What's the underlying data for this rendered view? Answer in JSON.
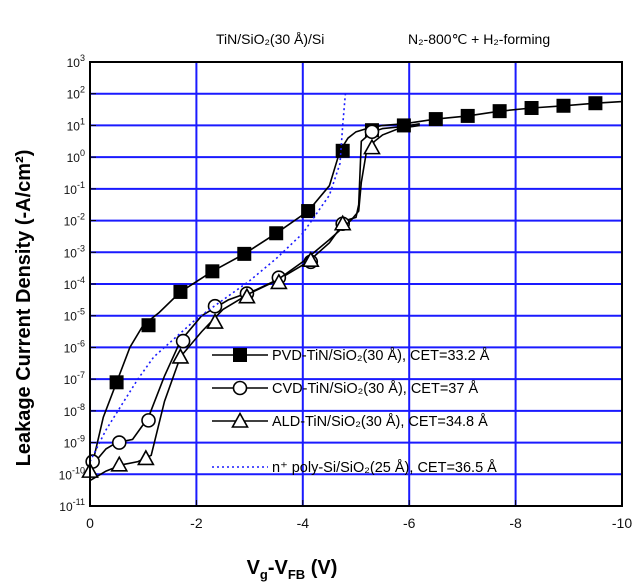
{
  "chart_data": {
    "type": "line",
    "title_left": "TiN/SiO₂(30 Å)/Si",
    "title_right": "N₂-800℃ + H₂-forming",
    "xlabel": "Vg-VFB (V)",
    "ylabel": "Leakage Current Density (-A/cm²)",
    "xlim": [
      0,
      -10
    ],
    "ylim_exp": [
      -11,
      3
    ],
    "yscale": "log",
    "grid": true,
    "x_ticks": [
      "0",
      "-2",
      "-4",
      "-6",
      "-8",
      "-10"
    ],
    "y_ticks": [
      "10^3",
      "10^2",
      "10^1",
      "10^0",
      "10^-1",
      "10^-2",
      "10^-3",
      "10^-4",
      "10^-5",
      "10^-6",
      "10^-7",
      "10^-8",
      "10^-9",
      "10^-10",
      "10^-11"
    ],
    "series": [
      {
        "name": "PVD-TiN/SiO₂(30 Å), CET=33.2 Å",
        "marker": "filled-square",
        "line": "solid",
        "x": [
          0,
          -0.25,
          -0.5,
          -0.75,
          -1.0,
          -1.3,
          -1.7,
          -2.3,
          -2.9,
          -3.5,
          -4.1,
          -4.5,
          -4.7,
          -4.85,
          -5.0,
          -5.2,
          -5.5,
          -5.9,
          -6.5,
          -7.1,
          -7.7,
          -8.3,
          -8.9,
          -9.5,
          -10.0
        ],
        "y": [
          -10.0,
          -8.2,
          -7.1,
          -6.0,
          -5.3,
          -4.9,
          -4.25,
          -3.6,
          -3.05,
          -2.4,
          -1.7,
          -0.9,
          0.2,
          0.6,
          0.8,
          0.9,
          1.0,
          1.05,
          1.2,
          1.3,
          1.45,
          1.55,
          1.62,
          1.7,
          1.75
        ],
        "markers": [
          [
            -0.5,
            -7.1
          ],
          [
            -1.1,
            -5.3
          ],
          [
            -1.7,
            -4.25
          ],
          [
            -2.3,
            -3.6
          ],
          [
            -2.9,
            -3.05
          ],
          [
            -3.5,
            -2.4
          ],
          [
            -4.1,
            -1.7
          ],
          [
            -4.75,
            0.2
          ],
          [
            -5.3,
            0.85
          ],
          [
            -5.9,
            1.0
          ],
          [
            -6.5,
            1.2
          ],
          [
            -7.1,
            1.3
          ],
          [
            -7.7,
            1.45
          ],
          [
            -8.3,
            1.55
          ],
          [
            -8.9,
            1.62
          ],
          [
            -9.5,
            1.7
          ]
        ]
      },
      {
        "name": "CVD-TiN/SiO₂(30 Å), CET=37 Å",
        "marker": "open-circle",
        "line": "solid",
        "x": [
          0,
          -0.3,
          -0.5,
          -0.8,
          -1.1,
          -1.4,
          -1.7,
          -2.1,
          -2.6,
          -3.1,
          -3.6,
          -4.1,
          -4.5,
          -4.8,
          -5.0,
          -5.05,
          -5.1,
          -5.3,
          -5.5,
          -5.8,
          -6.2
        ],
        "y": [
          -9.8,
          -9.2,
          -9.0,
          -8.9,
          -8.2,
          -6.9,
          -5.8,
          -5.0,
          -4.5,
          -4.2,
          -3.8,
          -3.3,
          -2.7,
          -2.0,
          -1.9,
          -1.5,
          0.5,
          0.8,
          0.9,
          0.95,
          1.05
        ],
        "markers": [
          [
            -0.05,
            -9.6
          ],
          [
            -0.55,
            -9.0
          ],
          [
            -1.1,
            -8.3
          ],
          [
            -1.75,
            -5.8
          ],
          [
            -2.35,
            -4.7
          ],
          [
            -2.95,
            -4.3
          ],
          [
            -3.55,
            -3.8
          ],
          [
            -4.15,
            -3.3
          ],
          [
            -4.75,
            -2.1
          ],
          [
            -5.3,
            0.8
          ]
        ]
      },
      {
        "name": "ALD-TiN/SiO₂(30 Å), CET=34.8 Å",
        "marker": "open-triangle",
        "line": "solid",
        "x": [
          0,
          -0.3,
          -0.6,
          -0.9,
          -1.15,
          -1.4,
          -1.7,
          -2.1,
          -2.5,
          -3.0,
          -3.5,
          -4.0,
          -4.5,
          -4.9,
          -5.05,
          -5.1,
          -5.2,
          -5.35,
          -5.5,
          -5.8,
          -6.2
        ],
        "y": [
          -10.2,
          -9.9,
          -9.7,
          -9.6,
          -9.4,
          -7.7,
          -6.3,
          -5.5,
          -4.8,
          -4.3,
          -3.9,
          -3.3,
          -2.6,
          -2.0,
          -1.7,
          -0.8,
          0.2,
          0.5,
          0.7,
          0.9,
          1.0
        ],
        "markers": [
          [
            0.0,
            -9.9
          ],
          [
            -0.55,
            -9.7
          ],
          [
            -1.05,
            -9.5
          ],
          [
            -1.7,
            -6.3
          ],
          [
            -2.35,
            -5.2
          ],
          [
            -2.95,
            -4.4
          ],
          [
            -3.55,
            -3.95
          ],
          [
            -4.15,
            -3.25
          ],
          [
            -4.75,
            -2.1
          ],
          [
            -5.3,
            0.3
          ]
        ]
      },
      {
        "name": "n⁺ poly-Si/SiO₂(25 Å),  CET=36.5 Å",
        "marker": "none",
        "line": "dotted",
        "x": [
          0,
          -0.3,
          -0.6,
          -0.9,
          -1.2,
          -1.6,
          -2.0,
          -2.5,
          -3.0,
          -3.5,
          -4.0,
          -4.5,
          -4.7,
          -4.75,
          -4.8
        ],
        "y": [
          -9.6,
          -8.6,
          -7.8,
          -7.0,
          -6.3,
          -5.7,
          -5.1,
          -4.5,
          -3.9,
          -3.2,
          -2.4,
          -1.2,
          -0.2,
          1.0,
          2.0
        ],
        "markers": []
      }
    ]
  }
}
